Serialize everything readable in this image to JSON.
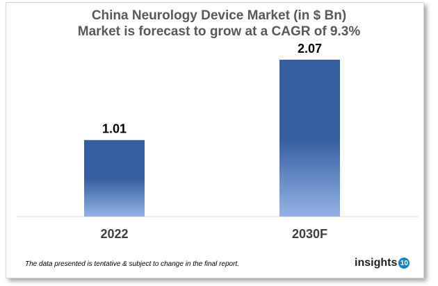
{
  "chart_data": {
    "type": "bar",
    "title": "China Neurology Device Market (in $ Bn)",
    "subtitle": "Market is forecast to grow at a CAGR of 9.3%",
    "categories": [
      "2022",
      "2030F"
    ],
    "values": [
      1.01,
      2.07
    ],
    "data_labels": [
      "1.01",
      "2.07"
    ],
    "xlabel": "",
    "ylabel": "",
    "ylim": [
      0,
      2.4
    ],
    "grid": false,
    "colors": {
      "bar_top": "#355ea0",
      "bar_bottom": "#94b2e6"
    }
  },
  "footnote": "The data presented is tentative & subject to change in the final report.",
  "logo": {
    "word": "insights",
    "number": "10",
    "color": "#1f7fc4"
  }
}
